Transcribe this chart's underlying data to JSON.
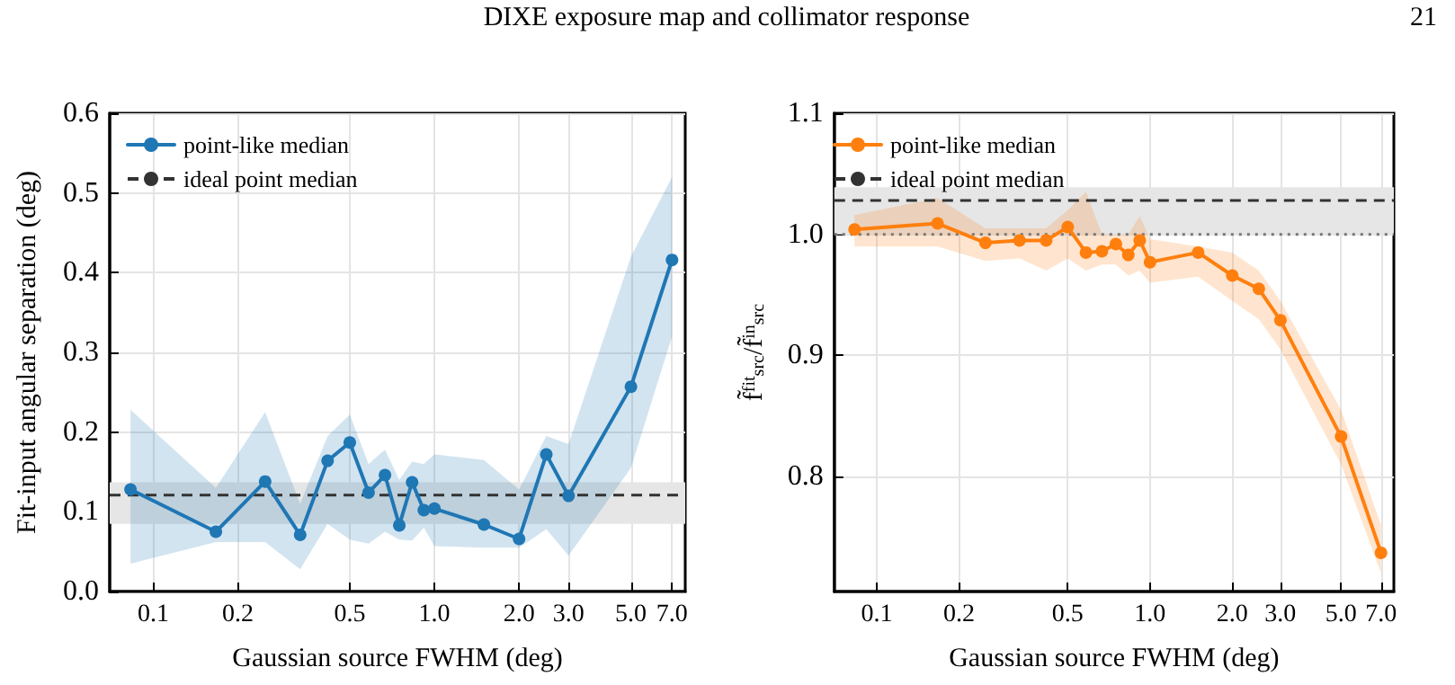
{
  "chart_data": [
    {
      "type": "line",
      "annotations": [
        "DIXE exposure map and collimator response",
        "21"
      ],
      "xlabel": "Gaussian source FWHM (deg)",
      "ylabel": "Fit-input angular separation (deg)",
      "log": "x",
      "grid": true,
      "legend": "top left",
      "marker": "circle",
      "line_style": "solid",
      "xlim": [
        0.07,
        7.8
      ],
      "xticks": [
        0.1,
        0.2,
        0.5,
        {
          "value": 1,
          "label": "1.0"
        },
        {
          "value": 2,
          "label": "2.0"
        },
        {
          "value": 3,
          "label": "3.0"
        },
        {
          "value": 5,
          "label": "5.0"
        },
        {
          "value": 7,
          "label": "7.0"
        }
      ],
      "ylim": [
        0,
        0.6
      ],
      "yticks": [
        {
          "value": 0,
          "label": "0.0"
        },
        0.1,
        0.2,
        0.3,
        0.4,
        0.5,
        0.6
      ],
      "x": [
        0.083,
        0.167,
        0.25,
        0.333,
        0.417,
        0.5,
        0.583,
        0.667,
        0.75,
        0.833,
        0.917,
        1.0,
        1.5,
        2.0,
        2.5,
        3.0,
        5.0,
        7.0
      ],
      "series": [
        {
          "name": "point-like median",
          "color": "#1f77b4",
          "values": [
            0.128,
            0.075,
            0.138,
            0.071,
            0.164,
            0.187,
            0.124,
            0.146,
            0.083,
            0.137,
            0.102,
            0.104,
            0.084,
            0.066,
            0.172,
            0.12,
            0.257,
            0.416
          ],
          "lower": [
            0.035,
            0.062,
            0.062,
            0.028,
            0.085,
            0.065,
            0.06,
            0.075,
            0.065,
            0.064,
            0.08,
            0.057,
            0.055,
            0.055,
            0.078,
            0.045,
            0.155,
            0.32
          ],
          "upper": [
            0.228,
            0.13,
            0.225,
            0.11,
            0.195,
            0.222,
            0.16,
            0.178,
            0.14,
            0.163,
            0.16,
            0.172,
            0.165,
            0.128,
            0.195,
            0.185,
            0.42,
            0.52
          ]
        }
      ],
      "ref_lines": [
        {
          "axis": "y",
          "value": 0.121,
          "label": "ideal point median",
          "color": "#333333",
          "line_style": "dashed"
        }
      ],
      "bands": [
        {
          "axis": "y",
          "from": 0.085,
          "to": 0.137,
          "color": "#e6e6e6"
        }
      ]
    },
    {
      "type": "line",
      "xlabel": "Gaussian source FWHM (deg)",
      "ylabel": "f̃$^{fit}$$_{src}$/f̃$^{in}$$_{src}$",
      "log": "x",
      "grid": true,
      "legend": "top left",
      "marker": "circle",
      "line_style": "solid",
      "xlim": [
        0.07,
        7.8
      ],
      "xticks": [
        0.1,
        0.2,
        0.5,
        {
          "value": 1,
          "label": "1.0"
        },
        {
          "value": 2,
          "label": "2.0"
        },
        {
          "value": 3,
          "label": "3.0"
        },
        {
          "value": 5,
          "label": "5.0"
        },
        {
          "value": 7,
          "label": "7.0"
        }
      ],
      "ylim": [
        0.705,
        1.1
      ],
      "yticks": [
        0.8,
        0.9,
        {
          "value": 1,
          "label": "1.0"
        },
        1.1
      ],
      "x": [
        0.083,
        0.167,
        0.25,
        0.333,
        0.417,
        0.5,
        0.583,
        0.667,
        0.75,
        0.833,
        0.917,
        1.0,
        1.5,
        2.0,
        2.5,
        3.0,
        5.0,
        7.0
      ],
      "series": [
        {
          "name": "point-like median",
          "color": "#ff7f0e",
          "values": [
            1.004,
            1.009,
            0.993,
            0.995,
            0.995,
            1.006,
            0.985,
            0.986,
            0.992,
            0.983,
            0.995,
            0.977,
            0.985,
            0.966,
            0.955,
            0.929,
            0.833,
            0.737
          ],
          "lower": [
            0.99,
            0.99,
            0.978,
            0.98,
            0.97,
            0.98,
            0.97,
            0.975,
            0.975,
            0.966,
            0.97,
            0.96,
            0.965,
            0.945,
            0.93,
            0.905,
            0.81,
            0.72
          ],
          "upper": [
            1.016,
            1.03,
            1.005,
            1.005,
            1.005,
            1.02,
            1.035,
            1.0,
            1.0,
            1.0,
            1.015,
            0.996,
            0.99,
            0.985,
            0.97,
            0.945,
            0.855,
            0.76
          ]
        }
      ],
      "ref_lines": [
        {
          "axis": "y",
          "value": 1.028,
          "label": "ideal point median",
          "color": "#333333",
          "line_style": "dashed"
        },
        {
          "axis": "y",
          "value": 1.0,
          "color": "#777777",
          "line_style": "dotted"
        }
      ],
      "bands": [
        {
          "axis": "y",
          "from": 1.0,
          "to": 1.039,
          "color": "#e6e6e6"
        }
      ]
    }
  ]
}
